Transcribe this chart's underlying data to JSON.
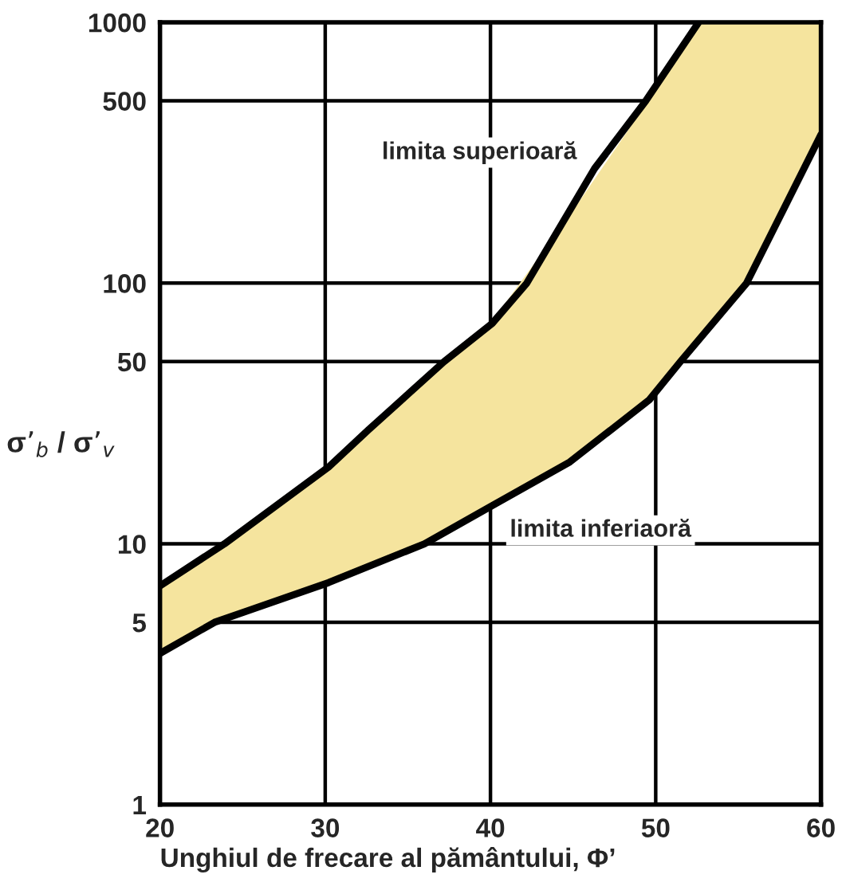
{
  "chart_data": {
    "type": "line",
    "xlabel": "Unghiul de frecare al pământului, Φ’",
    "ylabel": "σ’$_{b}$ / σ’$_{v}$",
    "log": "y",
    "xlim": [
      20,
      60
    ],
    "xticks": [
      20,
      30,
      40,
      50,
      60
    ],
    "ylim": [
      1,
      1000
    ],
    "yticks": [
      1,
      5,
      10,
      50,
      100,
      500,
      1000
    ],
    "grid": true,
    "series": [
      {
        "name": "limita superioară",
        "color": "#000000",
        "x": [
          20,
          23.9,
          30.2,
          32.6,
          37.2,
          40.1,
          42.2,
          46.3,
          49.4,
          52.6
        ],
        "values": [
          6.9,
          10,
          19.7,
          27.3,
          50,
          70,
          100,
          275,
          500,
          1000
        ]
      },
      {
        "name": "limita inferiaoră",
        "color": "#000000",
        "x": [
          20,
          23.3,
          30.2,
          36.0,
          40.1,
          44.8,
          49.6,
          51.5,
          55.5,
          60
        ],
        "values": [
          3.8,
          5,
          7.1,
          10,
          14.0,
          20.6,
          35.6,
          50,
          100,
          371
        ]
      },
      {
        "type": "area",
        "color": "#f5e49e",
        "x": [
          20,
          25,
          30,
          35,
          40,
          45,
          50,
          52.6,
          55,
          60
        ],
        "values": [
          null,
          null,
          null,
          null,
          null,
          null,
          null,
          null,
          null,
          null
        ],
        "lower": [
          3.8,
          5.5,
          7.1,
          9.4,
          14,
          21,
          38,
          58,
          92,
          371
        ],
        "upper": [
          6.9,
          11,
          19.7,
          37,
          70,
          190,
          550,
          1000,
          1000,
          1000
        ]
      }
    ]
  }
}
